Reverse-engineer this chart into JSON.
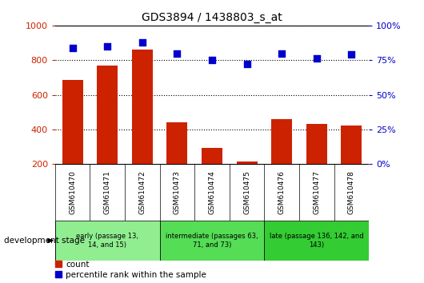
{
  "title": "GDS3894 / 1438803_s_at",
  "samples": [
    "GSM610470",
    "GSM610471",
    "GSM610472",
    "GSM610473",
    "GSM610474",
    "GSM610475",
    "GSM610476",
    "GSM610477",
    "GSM610478"
  ],
  "counts": [
    685,
    770,
    860,
    440,
    295,
    215,
    460,
    430,
    425
  ],
  "percentile_ranks": [
    84,
    85,
    88,
    80,
    75,
    72,
    80,
    76,
    79
  ],
  "ylim_left": [
    200,
    1000
  ],
  "ylim_right": [
    0,
    100
  ],
  "yticks_left": [
    200,
    400,
    600,
    800,
    1000
  ],
  "yticks_right": [
    0,
    25,
    50,
    75,
    100
  ],
  "bar_color": "#cc2200",
  "dot_color": "#0000cc",
  "grid_color": "#000000",
  "groups": [
    {
      "label": "early (passage 13,\n14, and 15)",
      "start": 0,
      "end": 2,
      "color": "#90ee90"
    },
    {
      "label": "intermediate (passages 63,\n71, and 73)",
      "start": 3,
      "end": 5,
      "color": "#55dd55"
    },
    {
      "label": "late (passage 136, 142, and\n143)",
      "start": 6,
      "end": 8,
      "color": "#33cc33"
    }
  ],
  "dev_stage_label": "development stage",
  "legend_count": "count",
  "legend_pct": "percentile rank within the sample",
  "tick_color_left": "#cc2200",
  "tick_color_right": "#0000cc",
  "bg_color_xtick": "#cccccc",
  "border_color": "#888888"
}
